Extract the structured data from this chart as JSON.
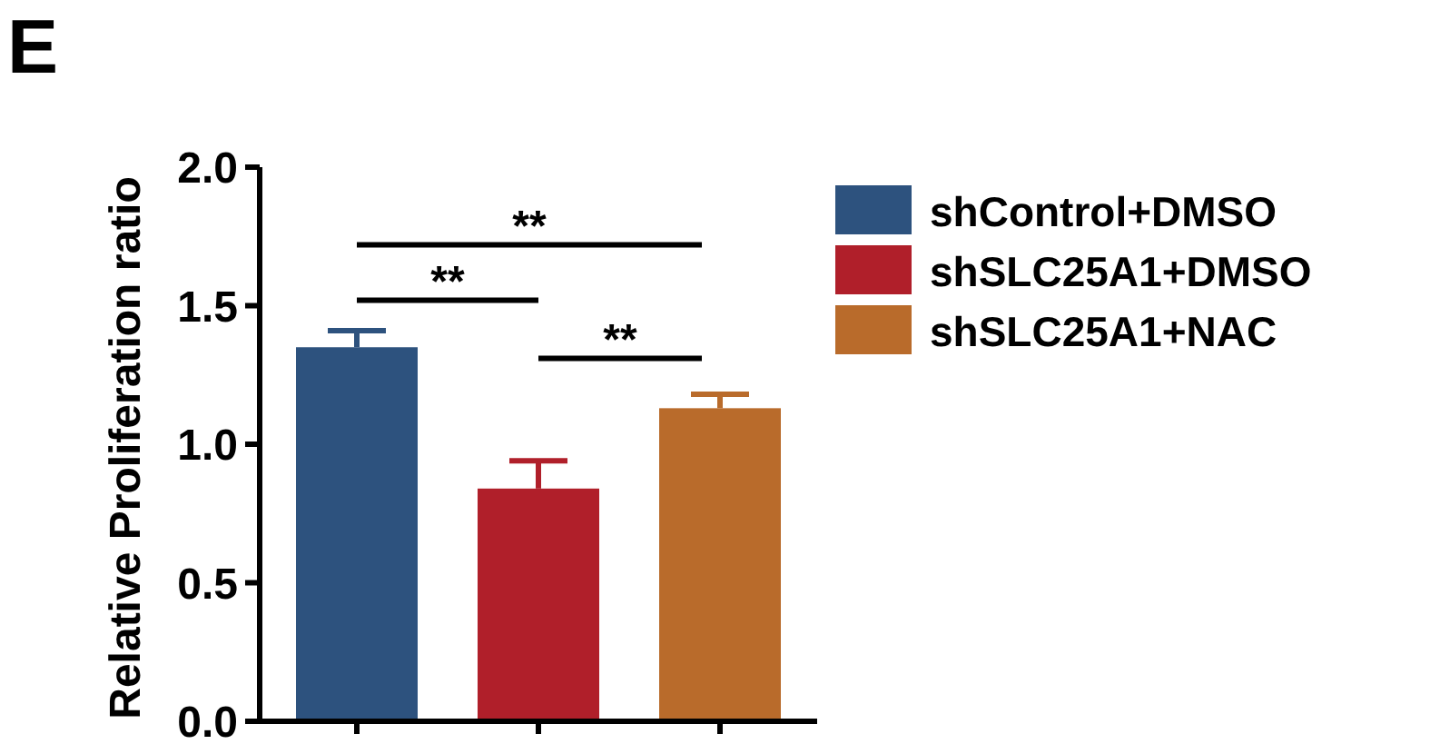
{
  "chart_data": {
    "type": "bar",
    "title": "E",
    "ylabel": "Relative Proliferation ratio",
    "categories": [
      null,
      null,
      null
    ],
    "series": [
      {
        "name": "shControl+DMSO",
        "color": "#2d527e",
        "values": [
          1.35,
          null,
          null
        ],
        "errors": [
          0.06,
          null,
          null
        ]
      },
      {
        "name": "shSLC25A1+DMSO",
        "color": "#b01f2a",
        "values": [
          null,
          0.84,
          null
        ],
        "errors": [
          null,
          0.1,
          null
        ]
      },
      {
        "name": "shSLC25A1+NAC",
        "color": "#b96b2b",
        "values": [
          null,
          null,
          1.13
        ],
        "errors": [
          null,
          null,
          0.05
        ]
      }
    ],
    "ylim": [
      0,
      2
    ],
    "yticks": [
      {
        "value": 0,
        "label": "0.0"
      },
      {
        "value": 0.5,
        "label": "0.5"
      },
      {
        "value": 1,
        "label": "1.0"
      },
      {
        "value": 1.5,
        "label": "1.5"
      },
      {
        "value": 2,
        "label": "2.0"
      }
    ],
    "annotations": [
      "**",
      "**",
      "**"
    ],
    "legend": "right",
    "grid": false
  }
}
